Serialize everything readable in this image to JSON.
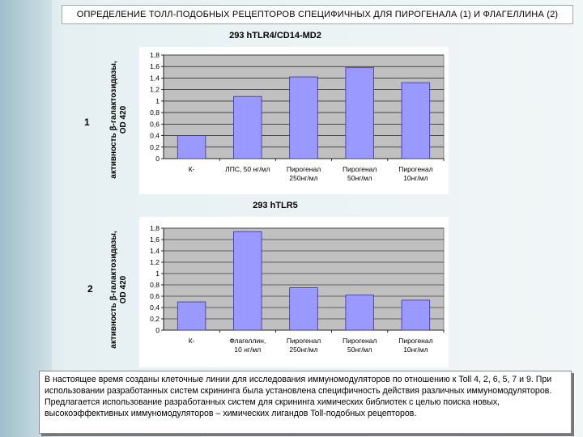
{
  "title": "ОПРЕДЕЛЕНИЕ ТОЛЛ-ПОДОБНЫХ РЕЦЕПТОРОВ СПЕЦИФИЧНЫХ ДЛЯ ПИРОГЕНАЛА (1) И ФЛАГЕЛЛИНА (2)",
  "panels": [
    {
      "num": "1"
    },
    {
      "num": "2"
    }
  ],
  "description": "В настоящее время созданы клеточные линии для исследования иммуномодуляторов по отношению к Toll 4, 2, 6, 5, 7 и 9. При использовании разработанных систем скрининга была установлена специфичность действия различных иммуномодуляторов. Предлагается использование разработанных систем для скрининга химических библиотек с целью поиска новых, высокоэффективных иммуномодуляторов – химических лигандов Toll-подобных рецепторов.",
  "colors": {
    "bar": "#9999ff",
    "bar_stroke": "#333399",
    "plot_bg": "#c0c0c0"
  },
  "chart_data": [
    {
      "type": "bar",
      "title": "293 hTLR4/CD14-MD2",
      "ylabel": [
        "активность β-галактозидазы,",
        "OD 420"
      ],
      "categories": [
        [
          "К-"
        ],
        [
          "ЛПС, 50 нг/мл"
        ],
        [
          "Пирогенал",
          "250нг/мл"
        ],
        [
          "Пирогенал",
          "50нг/мл"
        ],
        [
          "Пирогенал",
          "10нг/мл"
        ]
      ],
      "values": [
        0.4,
        1.08,
        1.42,
        1.58,
        1.32
      ],
      "ylim": [
        0,
        1.8
      ],
      "yticks": [
        "0",
        "0,2",
        "0,4",
        "0,6",
        "0,8",
        "1",
        "1,2",
        "1,4",
        "1,6",
        "1,8"
      ],
      "grid": true
    },
    {
      "type": "bar",
      "title": "293 hTLR5",
      "ylabel": [
        "активность β-галактозидазы,",
        "OD 420"
      ],
      "categories": [
        [
          "К-"
        ],
        [
          "Флагеллин,",
          "10 нг/мл"
        ],
        [
          "Пирогенал",
          "250нг/мл"
        ],
        [
          "Пирогенал",
          "50нг/мл"
        ],
        [
          "Пирогенал",
          "10нг/мл"
        ]
      ],
      "values": [
        0.5,
        1.74,
        0.75,
        0.62,
        0.53
      ],
      "ylim": [
        0,
        1.8
      ],
      "yticks": [
        "0",
        "0,2",
        "0,4",
        "0,6",
        "0,8",
        "1",
        "1,2",
        "1,4",
        "1,6",
        "1,8"
      ],
      "grid": true
    }
  ]
}
